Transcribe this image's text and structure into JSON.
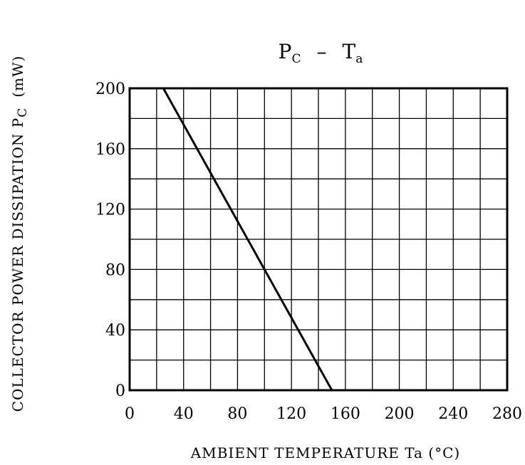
{
  "chart_data": {
    "type": "line",
    "title": {
      "main": "P",
      "main_sub": "C",
      "sep": "–",
      "secondary": "T",
      "secondary_sub": "a"
    },
    "xlabel": "AMBIENT TEMPERATURE Ta (°C)",
    "ylabel": {
      "text": "COLLECTOR POWER DISSIPATION P",
      "sub": "C",
      "unit": "(mW)"
    },
    "xlim": [
      0,
      280
    ],
    "ylim": [
      0,
      200
    ],
    "grid": true,
    "x_ticks": [
      0,
      40,
      80,
      120,
      160,
      200,
      240,
      280
    ],
    "y_ticks": [
      0,
      40,
      80,
      120,
      160,
      200
    ],
    "x_grid_step": 20,
    "y_grid_step": 20,
    "series": [
      {
        "x": [
          0,
          25,
          150
        ],
        "y": [
          200,
          200,
          0
        ]
      }
    ]
  }
}
